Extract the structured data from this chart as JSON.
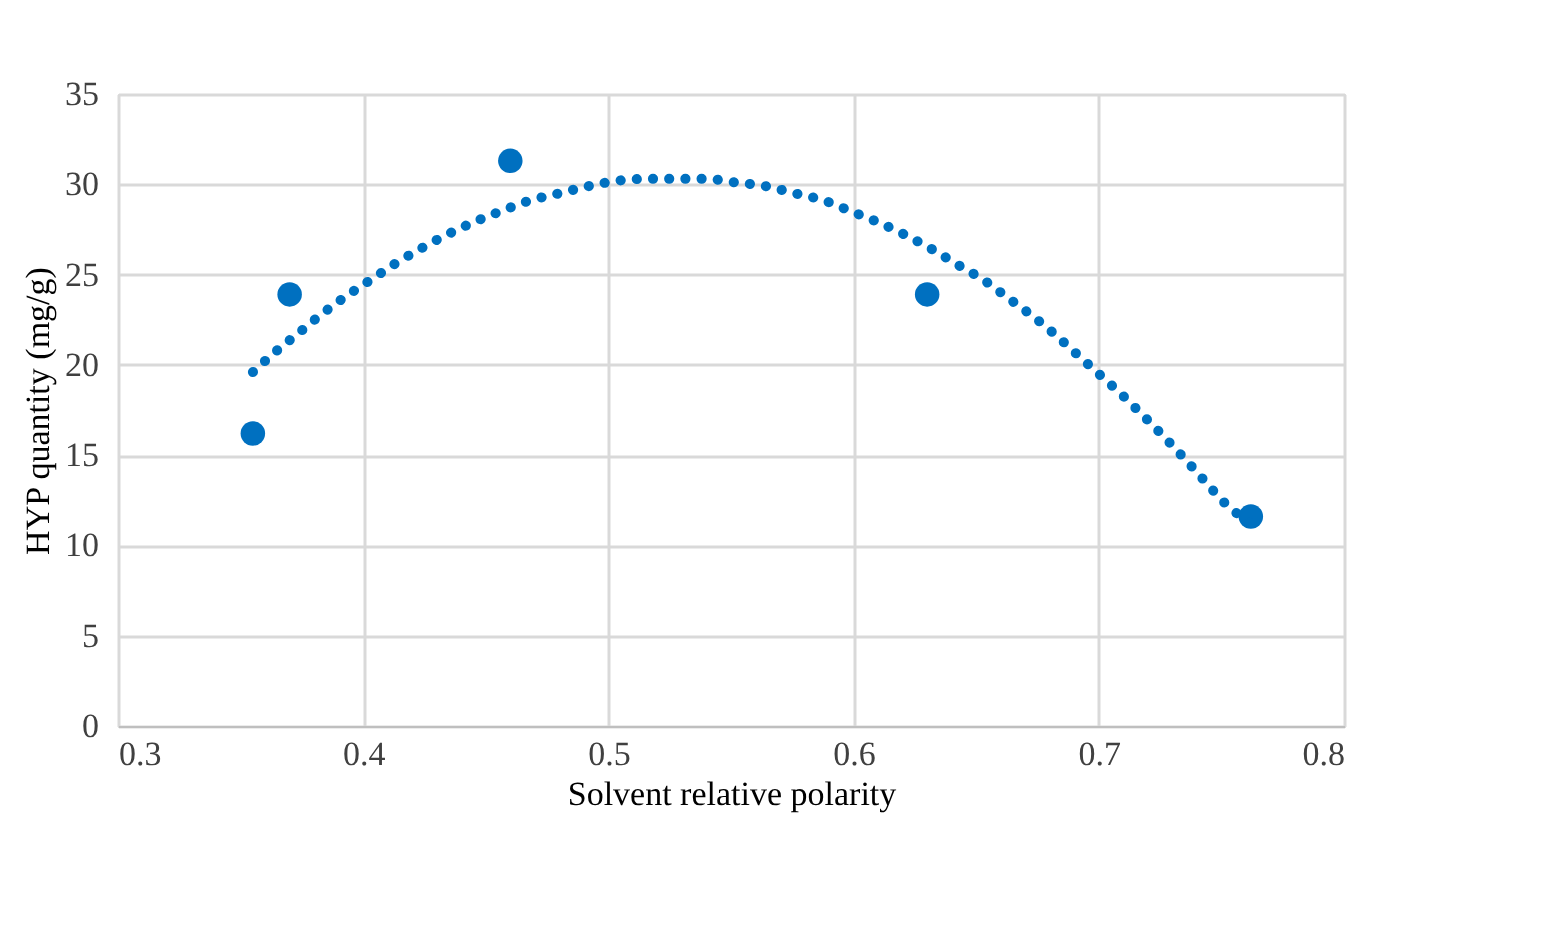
{
  "chart_data": {
    "type": "scatter",
    "xlabel": "Solvent relative polarity",
    "ylabel": "HYP quantity (mg/g)",
    "xlim": [
      0.3,
      0.8
    ],
    "xticks": [
      0.3,
      0.4,
      0.5,
      0.6,
      0.7,
      0.8
    ],
    "ylim": [
      0,
      35
    ],
    "yticks": [
      0,
      5,
      10,
      15,
      20,
      25,
      30,
      35
    ],
    "grid": true,
    "series": [
      {
        "color": "#0070c0",
        "marker": "circle",
        "x": [
          0.355,
          0.37,
          0.46,
          0.63,
          0.762
        ],
        "values": [
          16.2,
          23.9,
          31.3,
          23.9,
          11.6
        ]
      },
      {
        "type": "line",
        "color": "#0070c0",
        "marker": "none",
        "line_style": "dotted",
        "x": [
          0.355,
          0.364,
          0.374,
          0.383,
          0.393,
          0.403,
          0.413,
          0.423,
          0.434,
          0.445,
          0.456,
          0.468,
          0.48,
          0.492,
          0.504,
          0.516,
          0.528,
          0.54,
          0.552,
          0.564,
          0.576,
          0.588,
          0.599,
          0.61,
          0.632,
          0.643,
          0.653,
          0.663,
          0.673,
          0.682,
          0.691,
          0.7,
          0.709,
          0.718,
          0.726,
          0.735,
          0.743,
          0.751,
          0.762
        ],
        "values": [
          19.6,
          20.7,
          21.8,
          22.8,
          23.8,
          24.7,
          25.6,
          26.4,
          27.2,
          27.9,
          28.5,
          29.1,
          29.5,
          29.9,
          30.2,
          30.3,
          30.3,
          30.3,
          30.1,
          29.9,
          29.5,
          29.1,
          28.5,
          27.9,
          26.4,
          25.5,
          24.7,
          23.7,
          22.7,
          21.7,
          20.6,
          19.5,
          18.4,
          17.2,
          16.1,
          14.8,
          13.6,
          12.4,
          11.2
        ]
      }
    ]
  }
}
